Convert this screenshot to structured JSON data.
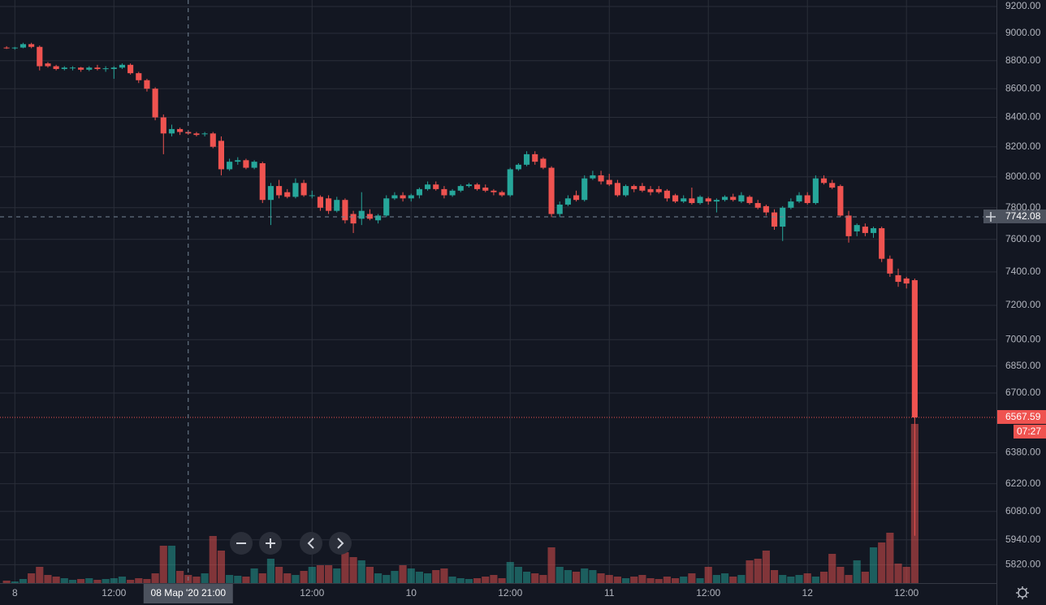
{
  "chart_data": {
    "type": "candlestick",
    "log": true,
    "grid": true,
    "up_color": "#26a69a",
    "down_color": "#ef5350",
    "ylim": [
      5733,
      9249
    ],
    "yticks": [
      {
        "value": 9200,
        "label": "9200.00"
      },
      {
        "value": 9000,
        "label": "9000.00"
      },
      {
        "value": 8800,
        "label": "8800.00"
      },
      {
        "value": 8600,
        "label": "8600.00"
      },
      {
        "value": 8400,
        "label": "8400.00"
      },
      {
        "value": 8200,
        "label": "8200.00"
      },
      {
        "value": 8000,
        "label": "8000.00"
      },
      {
        "value": 7800,
        "label": "7800.00"
      },
      {
        "value": 7600,
        "label": "7600.00"
      },
      {
        "value": 7400,
        "label": "7400.00"
      },
      {
        "value": 7200,
        "label": "7200.00"
      },
      {
        "value": 7000,
        "label": "7000.00"
      },
      {
        "value": 6850,
        "label": "6850.00"
      },
      {
        "value": 6700,
        "label": "6700.00"
      },
      {
        "value": 6380,
        "label": "6380.00"
      },
      {
        "value": 6220,
        "label": "6220.00"
      },
      {
        "value": 6080,
        "label": "6080.00"
      },
      {
        "value": 5940,
        "label": "5940.00"
      },
      {
        "value": 5820,
        "label": "5820.00"
      }
    ],
    "xlim": [
      -1.8,
      118.9
    ],
    "xticks": [
      {
        "value": 0,
        "label": "8"
      },
      {
        "value": 12,
        "label": "12:00"
      },
      {
        "value": 36,
        "label": "12:00"
      },
      {
        "value": 48,
        "label": "10"
      },
      {
        "value": 60,
        "label": "12:00"
      },
      {
        "value": 72,
        "label": "11"
      },
      {
        "value": 84,
        "label": "12:00"
      },
      {
        "value": 96,
        "label": "12"
      },
      {
        "value": 108,
        "label": "12:00"
      }
    ],
    "x": [
      -1,
      0,
      1,
      2,
      3,
      4,
      5,
      6,
      7,
      8,
      9,
      10,
      11,
      12,
      13,
      14,
      15,
      16,
      17,
      18,
      19,
      20,
      21,
      22,
      23,
      24,
      25,
      26,
      27,
      28,
      29,
      30,
      31,
      32,
      33,
      34,
      35,
      36,
      37,
      38,
      39,
      40,
      41,
      42,
      43,
      44,
      45,
      46,
      47,
      48,
      49,
      50,
      51,
      52,
      53,
      54,
      55,
      56,
      57,
      58,
      59,
      60,
      61,
      62,
      63,
      64,
      65,
      66,
      67,
      68,
      69,
      70,
      71,
      72,
      73,
      74,
      75,
      76,
      77,
      78,
      79,
      80,
      81,
      82,
      83,
      84,
      85,
      86,
      87,
      88,
      89,
      90,
      91,
      92,
      93,
      94,
      95,
      96,
      97,
      98,
      99,
      100,
      101,
      102,
      103,
      104,
      105,
      106,
      107,
      108,
      109
    ],
    "ohlc": [
      [
        8895,
        8905,
        8885,
        8890
      ],
      [
        8890,
        8900,
        8880,
        8895
      ],
      [
        8895,
        8930,
        8890,
        8920
      ],
      [
        8920,
        8930,
        8890,
        8900
      ],
      [
        8900,
        8910,
        8730,
        8760
      ],
      [
        8780,
        8790,
        8750,
        8760
      ],
      [
        8760,
        8770,
        8730,
        8740
      ],
      [
        8740,
        8760,
        8730,
        8750
      ],
      [
        8745,
        8760,
        8730,
        8750
      ],
      [
        8750,
        8755,
        8720,
        8735
      ],
      [
        8735,
        8760,
        8725,
        8750
      ],
      [
        8750,
        8770,
        8730,
        8740
      ],
      [
        8740,
        8760,
        8720,
        8745
      ],
      [
        8740,
        8760,
        8670,
        8750
      ],
      [
        8750,
        8780,
        8740,
        8770
      ],
      [
        8770,
        8780,
        8700,
        8710
      ],
      [
        8710,
        8720,
        8640,
        8660
      ],
      [
        8660,
        8670,
        8580,
        8600
      ],
      [
        8600,
        8610,
        8380,
        8400
      ],
      [
        8400,
        8420,
        8150,
        8290
      ],
      [
        8290,
        8350,
        8270,
        8320
      ],
      [
        8320,
        8330,
        8280,
        8300
      ],
      [
        8300,
        8310,
        8280,
        8290
      ],
      [
        8290,
        8300,
        8270,
        8280
      ],
      [
        8285,
        8300,
        8270,
        8290
      ],
      [
        8290,
        8300,
        8190,
        8200
      ],
      [
        8240,
        8270,
        8010,
        8050
      ],
      [
        8050,
        8120,
        8040,
        8100
      ],
      [
        8100,
        8130,
        8080,
        8110
      ],
      [
        8110,
        8120,
        8050,
        8060
      ],
      [
        8060,
        8110,
        8050,
        8100
      ],
      [
        8090,
        8100,
        7830,
        7850
      ],
      [
        7850,
        7960,
        7690,
        7940
      ],
      [
        7940,
        7980,
        7860,
        7880
      ],
      [
        7900,
        7920,
        7860,
        7870
      ],
      [
        7870,
        7990,
        7860,
        7960
      ],
      [
        7960,
        7980,
        7870,
        7880
      ],
      [
        7880,
        7910,
        7860,
        7880
      ],
      [
        7870,
        7880,
        7780,
        7800
      ],
      [
        7860,
        7880,
        7760,
        7780
      ],
      [
        7780,
        7870,
        7770,
        7850
      ],
      [
        7850,
        7860,
        7700,
        7720
      ],
      [
        7760,
        7780,
        7640,
        7700
      ],
      [
        7730,
        7900,
        7690,
        7780
      ],
      [
        7760,
        7790,
        7720,
        7730
      ],
      [
        7720,
        7760,
        7700,
        7750
      ],
      [
        7750,
        7880,
        7740,
        7860
      ],
      [
        7860,
        7900,
        7850,
        7880
      ],
      [
        7880,
        7900,
        7840,
        7860
      ],
      [
        7860,
        7890,
        7840,
        7880
      ],
      [
        7880,
        7930,
        7860,
        7920
      ],
      [
        7920,
        7970,
        7910,
        7950
      ],
      [
        7950,
        7970,
        7910,
        7920
      ],
      [
        7920,
        7940,
        7860,
        7880
      ],
      [
        7880,
        7920,
        7870,
        7910
      ],
      [
        7910,
        7950,
        7900,
        7940
      ],
      [
        7940,
        7960,
        7930,
        7950
      ],
      [
        7950,
        7960,
        7910,
        7920
      ],
      [
        7930,
        7950,
        7900,
        7910
      ],
      [
        7910,
        7920,
        7880,
        7900
      ],
      [
        7900,
        7910,
        7870,
        7880
      ],
      [
        7880,
        8060,
        7870,
        8050
      ],
      [
        8050,
        8090,
        8040,
        8080
      ],
      [
        8080,
        8170,
        8070,
        8150
      ],
      [
        8150,
        8170,
        8080,
        8100
      ],
      [
        8120,
        8130,
        8050,
        8060
      ],
      [
        8060,
        8070,
        7740,
        7760
      ],
      [
        7760,
        7840,
        7740,
        7820
      ],
      [
        7820,
        7880,
        7810,
        7860
      ],
      [
        7880,
        7910,
        7840,
        7850
      ],
      [
        7850,
        8010,
        7840,
        7990
      ],
      [
        7990,
        8040,
        7980,
        8010
      ],
      [
        8010,
        8040,
        7950,
        7970
      ],
      [
        7980,
        8020,
        7940,
        7950
      ],
      [
        7960,
        7980,
        7870,
        7880
      ],
      [
        7880,
        7950,
        7870,
        7940
      ],
      [
        7940,
        7950,
        7900,
        7920
      ],
      [
        7940,
        7960,
        7900,
        7910
      ],
      [
        7920,
        7940,
        7880,
        7900
      ],
      [
        7920,
        7940,
        7890,
        7900
      ],
      [
        7910,
        7920,
        7840,
        7860
      ],
      [
        7880,
        7890,
        7830,
        7840
      ],
      [
        7840,
        7880,
        7830,
        7860
      ],
      [
        7860,
        7930,
        7820,
        7830
      ],
      [
        7830,
        7880,
        7820,
        7870
      ],
      [
        7860,
        7870,
        7820,
        7840
      ],
      [
        7840,
        7860,
        7770,
        7850
      ],
      [
        7850,
        7880,
        7840,
        7870
      ],
      [
        7870,
        7890,
        7840,
        7850
      ],
      [
        7840,
        7900,
        7830,
        7880
      ],
      [
        7870,
        7880,
        7820,
        7830
      ],
      [
        7830,
        7850,
        7790,
        7800
      ],
      [
        7810,
        7820,
        7750,
        7770
      ],
      [
        7770,
        7790,
        7660,
        7680
      ],
      [
        7680,
        7810,
        7590,
        7800
      ],
      [
        7800,
        7860,
        7790,
        7840
      ],
      [
        7840,
        7900,
        7830,
        7880
      ],
      [
        7880,
        7900,
        7820,
        7830
      ],
      [
        7830,
        8010,
        7820,
        7990
      ],
      [
        7990,
        8010,
        7950,
        7960
      ],
      [
        7960,
        7980,
        7920,
        7930
      ],
      [
        7940,
        7950,
        7740,
        7750
      ],
      [
        7750,
        7780,
        7580,
        7620
      ],
      [
        7650,
        7700,
        7620,
        7690
      ],
      [
        7680,
        7700,
        7620,
        7640
      ],
      [
        7640,
        7680,
        7610,
        7670
      ],
      [
        7670,
        7680,
        7460,
        7480
      ],
      [
        7480,
        7500,
        7370,
        7390
      ],
      [
        7380,
        7420,
        7310,
        7340
      ],
      [
        7360,
        7370,
        7300,
        7330
      ],
      [
        7350,
        7360,
        5960,
        6567.59
      ]
    ],
    "volume": [
      3,
      2,
      5,
      12,
      20,
      10,
      8,
      6,
      4,
      5,
      6,
      4,
      5,
      6,
      8,
      4,
      6,
      5,
      12,
      46,
      46,
      15,
      10,
      8,
      12,
      58,
      40,
      10,
      9,
      8,
      18,
      12,
      30,
      20,
      12,
      10,
      15,
      20,
      22,
      22,
      18,
      38,
      32,
      28,
      20,
      12,
      10,
      15,
      22,
      18,
      14,
      12,
      16,
      18,
      8,
      6,
      5,
      6,
      8,
      10,
      6,
      26,
      20,
      14,
      12,
      10,
      44,
      20,
      16,
      14,
      18,
      16,
      12,
      10,
      8,
      6,
      8,
      10,
      6,
      5,
      8,
      6,
      8,
      12,
      6,
      20,
      10,
      12,
      8,
      10,
      28,
      30,
      40,
      16,
      10,
      8,
      10,
      12,
      8,
      14,
      36,
      20,
      10,
      28,
      14,
      44,
      50,
      62,
      24,
      20,
      196
    ],
    "crosshair": {
      "price": 7742.08,
      "x": 21,
      "time_label": "08 Мар '20 21:00"
    },
    "last_price": 6567.59,
    "countdown": "07:27"
  }
}
